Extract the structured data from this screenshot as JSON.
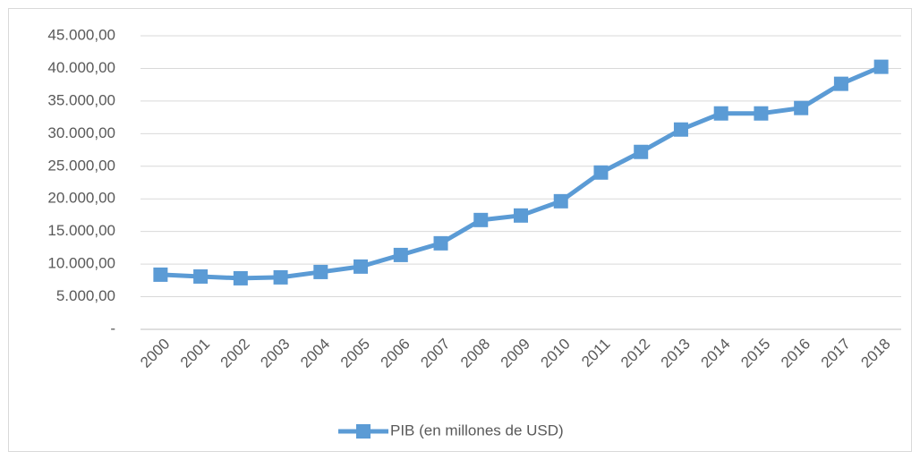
{
  "chart_data": {
    "type": "line",
    "categories": [
      "2000",
      "2001",
      "2002",
      "2003",
      "2004",
      "2005",
      "2006",
      "2007",
      "2008",
      "2009",
      "2010",
      "2011",
      "2012",
      "2013",
      "2014",
      "2015",
      "2016",
      "2017",
      "2018"
    ],
    "series": [
      {
        "name": "PIB (en millones de USD)",
        "color": "#5b9bd5",
        "values": [
          8380,
          8100,
          7830,
          7970,
          8790,
          9620,
          11400,
          13190,
          16760,
          17450,
          19640,
          24040,
          27200,
          30630,
          33100,
          33100,
          33930,
          37640,
          40250
        ]
      }
    ],
    "ylim": [
      0,
      45000
    ],
    "yticks": [
      {
        "value": 0,
        "label": "-"
      },
      {
        "value": 5000,
        "label": "5.000,00"
      },
      {
        "value": 10000,
        "label": "10.000,00"
      },
      {
        "value": 15000,
        "label": "15.000,00"
      },
      {
        "value": 20000,
        "label": "20.000,00"
      },
      {
        "value": 25000,
        "label": "25.000,00"
      },
      {
        "value": 30000,
        "label": "30.000,00"
      },
      {
        "value": 35000,
        "label": "35.000,00"
      },
      {
        "value": 40000,
        "label": "40.000,00"
      },
      {
        "value": 45000,
        "label": "45.000,00"
      }
    ],
    "grid": true,
    "legend": "bottom"
  }
}
